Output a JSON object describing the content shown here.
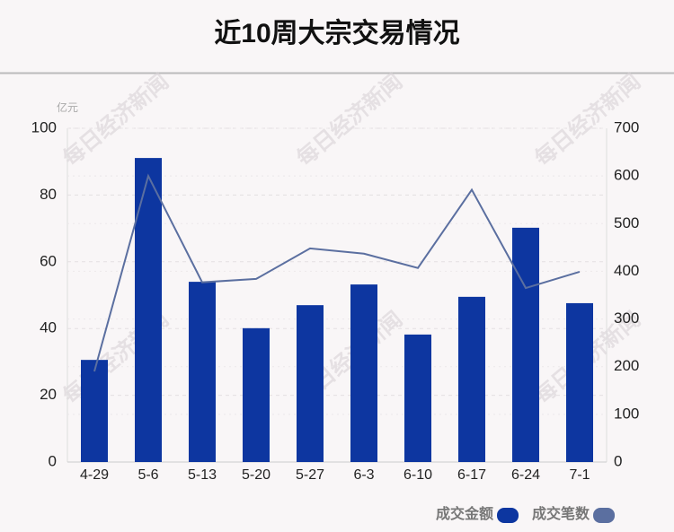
{
  "chart_data": {
    "type": "bar_line",
    "title": "近10周大宗交易情况",
    "y_label": "亿元",
    "watermark": "每日经济新闻",
    "categories": [
      "4-29",
      "5-6",
      "5-13",
      "5-20",
      "5-27",
      "6-3",
      "6-10",
      "6-17",
      "6-24",
      "7-1"
    ],
    "series": [
      {
        "name": "成交金额",
        "type": "bar",
        "color": "#0d36a0",
        "values": [
          30.6,
          91.1,
          54.0,
          40.1,
          47.0,
          53.2,
          38.2,
          49.5,
          70.2,
          47.6
        ]
      },
      {
        "name": "成交笔数",
        "type": "line",
        "axis": "y2",
        "color": "#5b6fa0",
        "values": [
          190,
          600,
          377,
          384,
          448,
          437,
          407,
          571,
          365,
          399
        ]
      }
    ],
    "ylim": [
      0,
      100
    ],
    "yticks": [
      0,
      20,
      40,
      60,
      80,
      100
    ],
    "y2lim": [
      0,
      700
    ],
    "y2ticks": [
      0,
      100,
      200,
      300,
      400,
      500,
      600,
      700
    ],
    "grid": true
  }
}
